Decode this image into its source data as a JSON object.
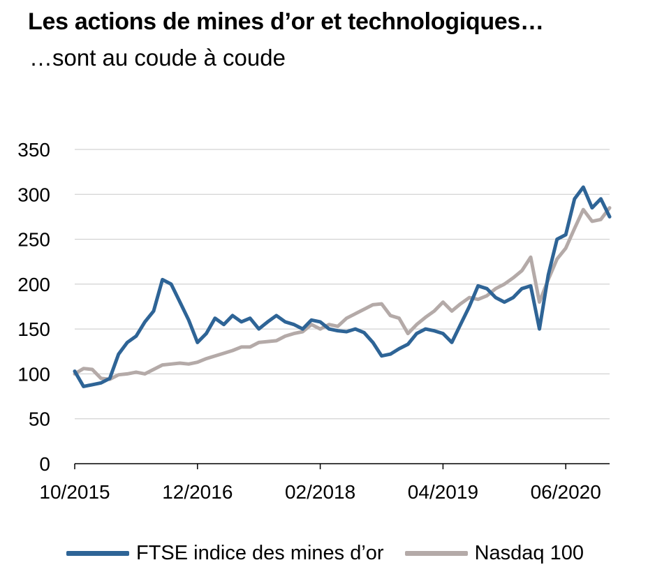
{
  "header": {
    "title": "Les actions de mines d’or et technologiques…",
    "subtitle": "…sont au coude à coude"
  },
  "chart_data": {
    "type": "line",
    "ylim": [
      0,
      350
    ],
    "yticks": [
      0,
      50,
      100,
      150,
      200,
      250,
      300,
      350
    ],
    "xlim": [
      "2015-10",
      "2020-11"
    ],
    "xticks": [
      "10/2015",
      "12/2016",
      "02/2018",
      "04/2019",
      "06/2020"
    ],
    "grid": true,
    "legend_position": "bottom",
    "series": [
      {
        "name": "FTSE indice des mines d’or",
        "color": "#2e6496",
        "points": [
          [
            "2015-10",
            103
          ],
          [
            "2015-11",
            86
          ],
          [
            "2015-12",
            88
          ],
          [
            "2016-01",
            90
          ],
          [
            "2016-02",
            95
          ],
          [
            "2016-03",
            122
          ],
          [
            "2016-04",
            135
          ],
          [
            "2016-05",
            142
          ],
          [
            "2016-06",
            158
          ],
          [
            "2016-07",
            170
          ],
          [
            "2016-08",
            205
          ],
          [
            "2016-09",
            200
          ],
          [
            "2016-10",
            180
          ],
          [
            "2016-11",
            160
          ],
          [
            "2016-12",
            135
          ],
          [
            "2017-01",
            145
          ],
          [
            "2017-02",
            162
          ],
          [
            "2017-03",
            155
          ],
          [
            "2017-04",
            165
          ],
          [
            "2017-05",
            158
          ],
          [
            "2017-06",
            162
          ],
          [
            "2017-07",
            150
          ],
          [
            "2017-08",
            158
          ],
          [
            "2017-09",
            165
          ],
          [
            "2017-10",
            158
          ],
          [
            "2017-11",
            155
          ],
          [
            "2017-12",
            150
          ],
          [
            "2018-01",
            160
          ],
          [
            "2018-02",
            158
          ],
          [
            "2018-03",
            150
          ],
          [
            "2018-04",
            148
          ],
          [
            "2018-05",
            147
          ],
          [
            "2018-06",
            150
          ],
          [
            "2018-07",
            146
          ],
          [
            "2018-08",
            135
          ],
          [
            "2018-09",
            120
          ],
          [
            "2018-10",
            122
          ],
          [
            "2018-11",
            128
          ],
          [
            "2018-12",
            133
          ],
          [
            "2019-01",
            145
          ],
          [
            "2019-02",
            150
          ],
          [
            "2019-03",
            148
          ],
          [
            "2019-04",
            145
          ],
          [
            "2019-05",
            135
          ],
          [
            "2019-06",
            155
          ],
          [
            "2019-07",
            175
          ],
          [
            "2019-08",
            198
          ],
          [
            "2019-09",
            195
          ],
          [
            "2019-10",
            185
          ],
          [
            "2019-11",
            180
          ],
          [
            "2019-12",
            185
          ],
          [
            "2020-01",
            195
          ],
          [
            "2020-02",
            198
          ],
          [
            "2020-03",
            150
          ],
          [
            "2020-04",
            210
          ],
          [
            "2020-05",
            250
          ],
          [
            "2020-06",
            255
          ],
          [
            "2020-07",
            295
          ],
          [
            "2020-08",
            308
          ],
          [
            "2020-09",
            285
          ],
          [
            "2020-10",
            295
          ],
          [
            "2020-11",
            275
          ]
        ]
      },
      {
        "name": "Nasdaq 100",
        "color": "#b4aaa8",
        "points": [
          [
            "2015-10",
            100
          ],
          [
            "2015-11",
            106
          ],
          [
            "2015-12",
            105
          ],
          [
            "2016-01",
            95
          ],
          [
            "2016-02",
            94
          ],
          [
            "2016-03",
            99
          ],
          [
            "2016-04",
            100
          ],
          [
            "2016-05",
            102
          ],
          [
            "2016-06",
            100
          ],
          [
            "2016-07",
            105
          ],
          [
            "2016-08",
            110
          ],
          [
            "2016-09",
            111
          ],
          [
            "2016-10",
            112
          ],
          [
            "2016-11",
            111
          ],
          [
            "2016-12",
            113
          ],
          [
            "2017-01",
            117
          ],
          [
            "2017-02",
            120
          ],
          [
            "2017-03",
            123
          ],
          [
            "2017-04",
            126
          ],
          [
            "2017-05",
            130
          ],
          [
            "2017-06",
            130
          ],
          [
            "2017-07",
            135
          ],
          [
            "2017-08",
            136
          ],
          [
            "2017-09",
            137
          ],
          [
            "2017-10",
            142
          ],
          [
            "2017-11",
            145
          ],
          [
            "2017-12",
            147
          ],
          [
            "2018-01",
            155
          ],
          [
            "2018-02",
            150
          ],
          [
            "2018-03",
            155
          ],
          [
            "2018-04",
            153
          ],
          [
            "2018-05",
            162
          ],
          [
            "2018-06",
            167
          ],
          [
            "2018-07",
            172
          ],
          [
            "2018-08",
            177
          ],
          [
            "2018-09",
            178
          ],
          [
            "2018-10",
            165
          ],
          [
            "2018-11",
            162
          ],
          [
            "2018-12",
            145
          ],
          [
            "2019-01",
            155
          ],
          [
            "2019-02",
            163
          ],
          [
            "2019-03",
            170
          ],
          [
            "2019-04",
            180
          ],
          [
            "2019-05",
            170
          ],
          [
            "2019-06",
            178
          ],
          [
            "2019-07",
            185
          ],
          [
            "2019-08",
            183
          ],
          [
            "2019-09",
            187
          ],
          [
            "2019-10",
            195
          ],
          [
            "2019-11",
            200
          ],
          [
            "2019-12",
            207
          ],
          [
            "2020-01",
            215
          ],
          [
            "2020-02",
            230
          ],
          [
            "2020-03",
            180
          ],
          [
            "2020-04",
            205
          ],
          [
            "2020-05",
            228
          ],
          [
            "2020-06",
            240
          ],
          [
            "2020-07",
            262
          ],
          [
            "2020-08",
            283
          ],
          [
            "2020-09",
            270
          ],
          [
            "2020-10",
            272
          ],
          [
            "2020-11",
            285
          ]
        ]
      }
    ]
  }
}
